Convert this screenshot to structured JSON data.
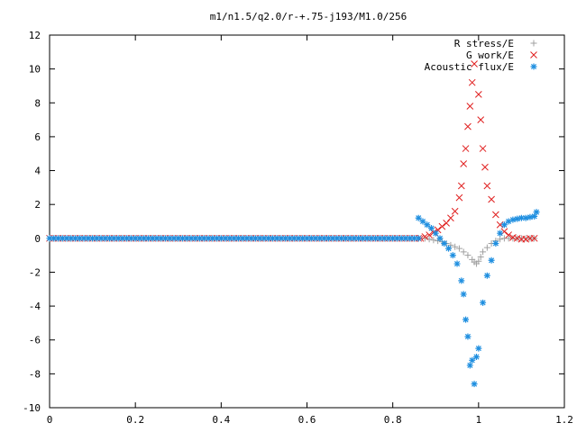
{
  "chart_data": {
    "type": "scatter",
    "title": "m1/n1.5/q2.0/r-+.75-j193/M1.0/256",
    "xlabel": "",
    "ylabel": "",
    "xlim": [
      0,
      1.2
    ],
    "ylim": [
      -10,
      12
    ],
    "xticks": [
      "0",
      "0.2",
      "0.4",
      "0.6",
      "0.8",
      "1",
      "1.2"
    ],
    "yticks": [
      "-10",
      "-8",
      "-6",
      "-4",
      "-2",
      "0",
      "2",
      "4",
      "6",
      "8",
      "10",
      "12"
    ],
    "grid": false,
    "legend_position": "top-right",
    "series": [
      {
        "name": "R stress/E",
        "marker": "plus",
        "color": "#a0a0a0",
        "x": [
          0.875,
          0.885,
          0.895,
          0.905,
          0.915,
          0.925,
          0.935,
          0.945,
          0.955,
          0.965,
          0.975,
          0.985,
          0.99,
          0.995,
          1.0,
          1.005,
          1.01,
          1.02,
          1.03,
          1.04,
          1.05,
          1.06,
          1.07,
          1.08,
          1.09,
          1.1,
          1.11,
          1.12,
          1.13
        ],
        "y": [
          0.0,
          -0.05,
          -0.1,
          -0.15,
          -0.2,
          -0.3,
          -0.4,
          -0.5,
          -0.6,
          -0.8,
          -1.0,
          -1.25,
          -1.4,
          -1.5,
          -1.35,
          -1.1,
          -0.8,
          -0.55,
          -0.3,
          -0.15,
          -0.05,
          0.0,
          0.0,
          0.0,
          0.0,
          0.0,
          0.0,
          0.0,
          0.0
        ]
      },
      {
        "name": "G work/E",
        "marker": "cross",
        "color": "#e02020",
        "x": [
          0.865,
          0.875,
          0.885,
          0.895,
          0.905,
          0.915,
          0.925,
          0.935,
          0.945,
          0.955,
          0.96,
          0.965,
          0.97,
          0.975,
          0.98,
          0.985,
          0.99,
          1.0,
          1.005,
          1.01,
          1.015,
          1.02,
          1.03,
          1.04,
          1.05,
          1.06,
          1.07,
          1.08,
          1.09,
          1.1,
          1.11,
          1.12,
          1.13
        ],
        "y": [
          0.0,
          0.1,
          0.2,
          0.35,
          0.5,
          0.7,
          0.9,
          1.2,
          1.6,
          2.4,
          3.1,
          4.4,
          5.3,
          6.6,
          7.8,
          9.2,
          10.3,
          8.5,
          7.0,
          5.3,
          4.2,
          3.1,
          2.3,
          1.4,
          0.8,
          0.4,
          0.2,
          0.05,
          0.0,
          -0.05,
          -0.05,
          0.0,
          0.0
        ]
      },
      {
        "name": "Acoustic flux/E",
        "marker": "star",
        "color": "#1f8fe0",
        "x": [
          0.86,
          0.87,
          0.88,
          0.89,
          0.9,
          0.91,
          0.92,
          0.93,
          0.94,
          0.95,
          0.96,
          0.965,
          0.97,
          0.975,
          0.98,
          0.985,
          0.99,
          0.995,
          1.0,
          1.01,
          1.02,
          1.03,
          1.04,
          1.05,
          1.06,
          1.07,
          1.08,
          1.09,
          1.1,
          1.11,
          1.12,
          1.13,
          1.135
        ],
        "y": [
          1.2,
          1.0,
          0.8,
          0.6,
          0.3,
          0.0,
          -0.3,
          -0.6,
          -1.0,
          -1.5,
          -2.5,
          -3.3,
          -4.8,
          -5.8,
          -7.5,
          -7.2,
          -8.6,
          -7.0,
          -6.5,
          -3.8,
          -2.2,
          -1.3,
          -0.3,
          0.3,
          0.8,
          1.0,
          1.1,
          1.15,
          1.2,
          1.2,
          1.25,
          1.3,
          1.55
        ]
      }
    ],
    "baseline_series": {
      "description_note": "",
      "x_start": 0.0,
      "x_end": 0.86,
      "step": 0.01,
      "y": 0.0
    }
  }
}
